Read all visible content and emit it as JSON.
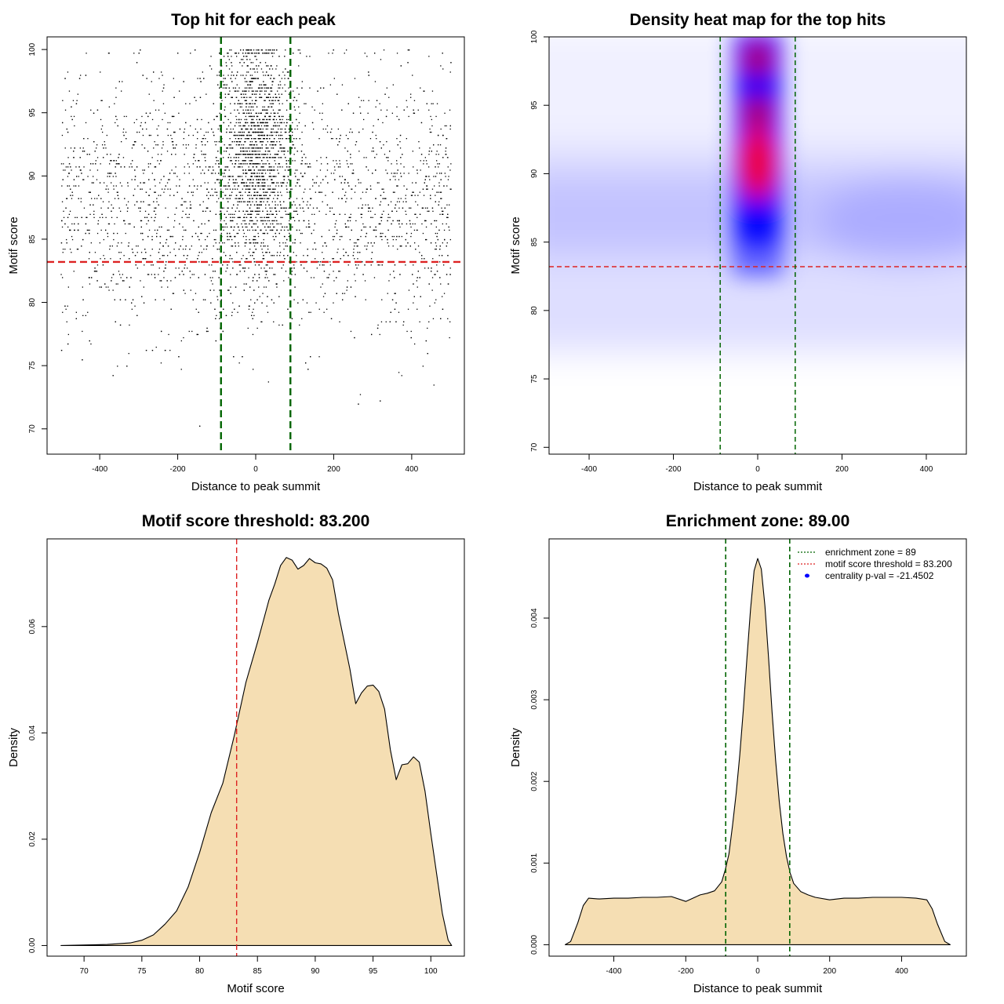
{
  "colors": {
    "threshold_line": "#dd2222",
    "zone_line": "#006400",
    "density_fill": "#f5deb3",
    "points": "#000000",
    "heat_low": "#ffffff",
    "heat_mid": "#0000ff",
    "heat_high": "#ff0000",
    "legend_dot": "#0000ff"
  },
  "chart_data": [
    {
      "id": "scatter",
      "type": "scatter",
      "title": "Top hit for each peak",
      "xlabel": "Distance to peak summit",
      "ylabel": "Motif score",
      "xlim": [
        -535,
        535
      ],
      "ylim": [
        68,
        101
      ],
      "xticks": [
        -400,
        -200,
        0,
        200,
        400
      ],
      "yticks": [
        70,
        75,
        80,
        85,
        90,
        95,
        100
      ],
      "hlines": [
        83.2
      ],
      "vlines": [
        -89,
        89
      ],
      "grid": false,
      "x_support": [
        -500,
        500
      ],
      "distribution": {
        "background_fraction": 0.6,
        "background_y_mean": 88,
        "background_y_sd": 5.2,
        "central_x_sd": 45,
        "central_y_mean": 92,
        "central_y_sd": 4.5
      }
    },
    {
      "id": "heatmap",
      "type": "heatmap",
      "title": "Density heat map for the top hits",
      "xlabel": "Distance to peak summit",
      "ylabel": "Motif score",
      "xlim": [
        -495,
        495
      ],
      "ylim": [
        69.5,
        100
      ],
      "xticks": [
        -400,
        -200,
        0,
        200,
        400
      ],
      "yticks": [
        70,
        75,
        80,
        85,
        90,
        95,
        100
      ],
      "hlines": [
        83.2
      ],
      "vlines": [
        -89,
        89
      ],
      "color_scale": [
        "white",
        "blue",
        "red"
      ],
      "hotspots": [
        {
          "x": 0,
          "y": 90.8,
          "level": "max"
        },
        {
          "x": 0,
          "y": 94.4,
          "level": "high"
        },
        {
          "x": 0,
          "y": 98.4,
          "level": "high"
        }
      ]
    },
    {
      "id": "score_density",
      "type": "area",
      "title": "Motif score threshold: 83.200",
      "xlabel": "Motif score",
      "ylabel": "Density",
      "xlim": [
        66.8,
        102.9
      ],
      "ylim": [
        -0.002,
        0.0765
      ],
      "xticks": [
        70,
        75,
        80,
        85,
        90,
        95,
        100
      ],
      "yticks": [
        0.0,
        0.02,
        0.04,
        0.06
      ],
      "ytick_labels": [
        "0.00",
        "0.02",
        "0.04",
        "0.06"
      ],
      "vlines": [
        83.2
      ],
      "x": [
        68,
        72,
        74,
        75,
        76,
        77,
        78,
        79,
        80,
        81,
        82,
        83,
        84,
        85,
        85.5,
        86,
        86.5,
        87,
        87.5,
        88,
        88.5,
        89,
        89.5,
        90,
        90.5,
        91,
        91.5,
        92,
        93,
        93.5,
        94,
        94.5,
        95,
        95.5,
        96,
        96.5,
        97,
        97.5,
        98,
        98.5,
        99,
        99.5,
        100,
        101,
        101.5,
        101.8
      ],
      "y": [
        0.0,
        0.0002,
        0.0005,
        0.001,
        0.002,
        0.004,
        0.0065,
        0.011,
        0.0175,
        0.025,
        0.0305,
        0.0395,
        0.0495,
        0.057,
        0.061,
        0.065,
        0.068,
        0.0715,
        0.073,
        0.0725,
        0.0708,
        0.0715,
        0.0728,
        0.072,
        0.0718,
        0.071,
        0.0688,
        0.0625,
        0.052,
        0.0455,
        0.0475,
        0.0488,
        0.049,
        0.0478,
        0.0445,
        0.0368,
        0.0312,
        0.034,
        0.0342,
        0.0355,
        0.0345,
        0.029,
        0.021,
        0.006,
        0.001,
        0.0
      ]
    },
    {
      "id": "distance_density",
      "type": "area",
      "title": "Enrichment zone: 89.00",
      "xlabel": "Distance to peak summit",
      "ylabel": "Density",
      "xlim": [
        -580,
        580
      ],
      "ylim": [
        -0.00014,
        0.00497
      ],
      "xticks": [
        -400,
        -200,
        0,
        200,
        400
      ],
      "yticks": [
        0.0,
        0.001,
        0.002,
        0.003,
        0.004
      ],
      "ytick_labels": [
        "0.000",
        "0.001",
        "0.002",
        "0.003",
        "0.004"
      ],
      "vlines": [
        -89,
        89
      ],
      "x": [
        -535,
        -520,
        -500,
        -485,
        -470,
        -440,
        -400,
        -360,
        -320,
        -280,
        -240,
        -200,
        -160,
        -140,
        -120,
        -100,
        -90,
        -80,
        -70,
        -60,
        -50,
        -40,
        -30,
        -20,
        -10,
        0,
        10,
        20,
        30,
        40,
        50,
        60,
        70,
        80,
        90,
        100,
        120,
        140,
        160,
        200,
        240,
        280,
        320,
        360,
        400,
        440,
        470,
        485,
        500,
        520,
        535
      ],
      "y": [
        0.0,
        4e-05,
        0.00027,
        0.00048,
        0.00057,
        0.00056,
        0.00057,
        0.00057,
        0.00058,
        0.00058,
        0.00059,
        0.00053,
        0.00061,
        0.00063,
        0.00066,
        0.00077,
        0.00092,
        0.00111,
        0.00146,
        0.00185,
        0.00232,
        0.00288,
        0.0035,
        0.0041,
        0.00458,
        0.00473,
        0.0046,
        0.00415,
        0.00352,
        0.00285,
        0.00225,
        0.00175,
        0.00136,
        0.00108,
        0.00088,
        0.00075,
        0.00065,
        0.00061,
        0.00058,
        0.00055,
        0.00057,
        0.00057,
        0.00058,
        0.00058,
        0.00058,
        0.00057,
        0.00055,
        0.00044,
        0.00025,
        4e-05,
        0.0
      ],
      "legend": [
        {
          "label": "enrichment zone = 89",
          "style": "dotted-line",
          "color": "#006400"
        },
        {
          "label": "motif score threshold = 83.200",
          "style": "dotted-line",
          "color": "#dd2222"
        },
        {
          "label": "centrality p-val = -21.4502",
          "style": "dot",
          "color": "#0000ff"
        }
      ],
      "legend_position": "top-right"
    }
  ]
}
